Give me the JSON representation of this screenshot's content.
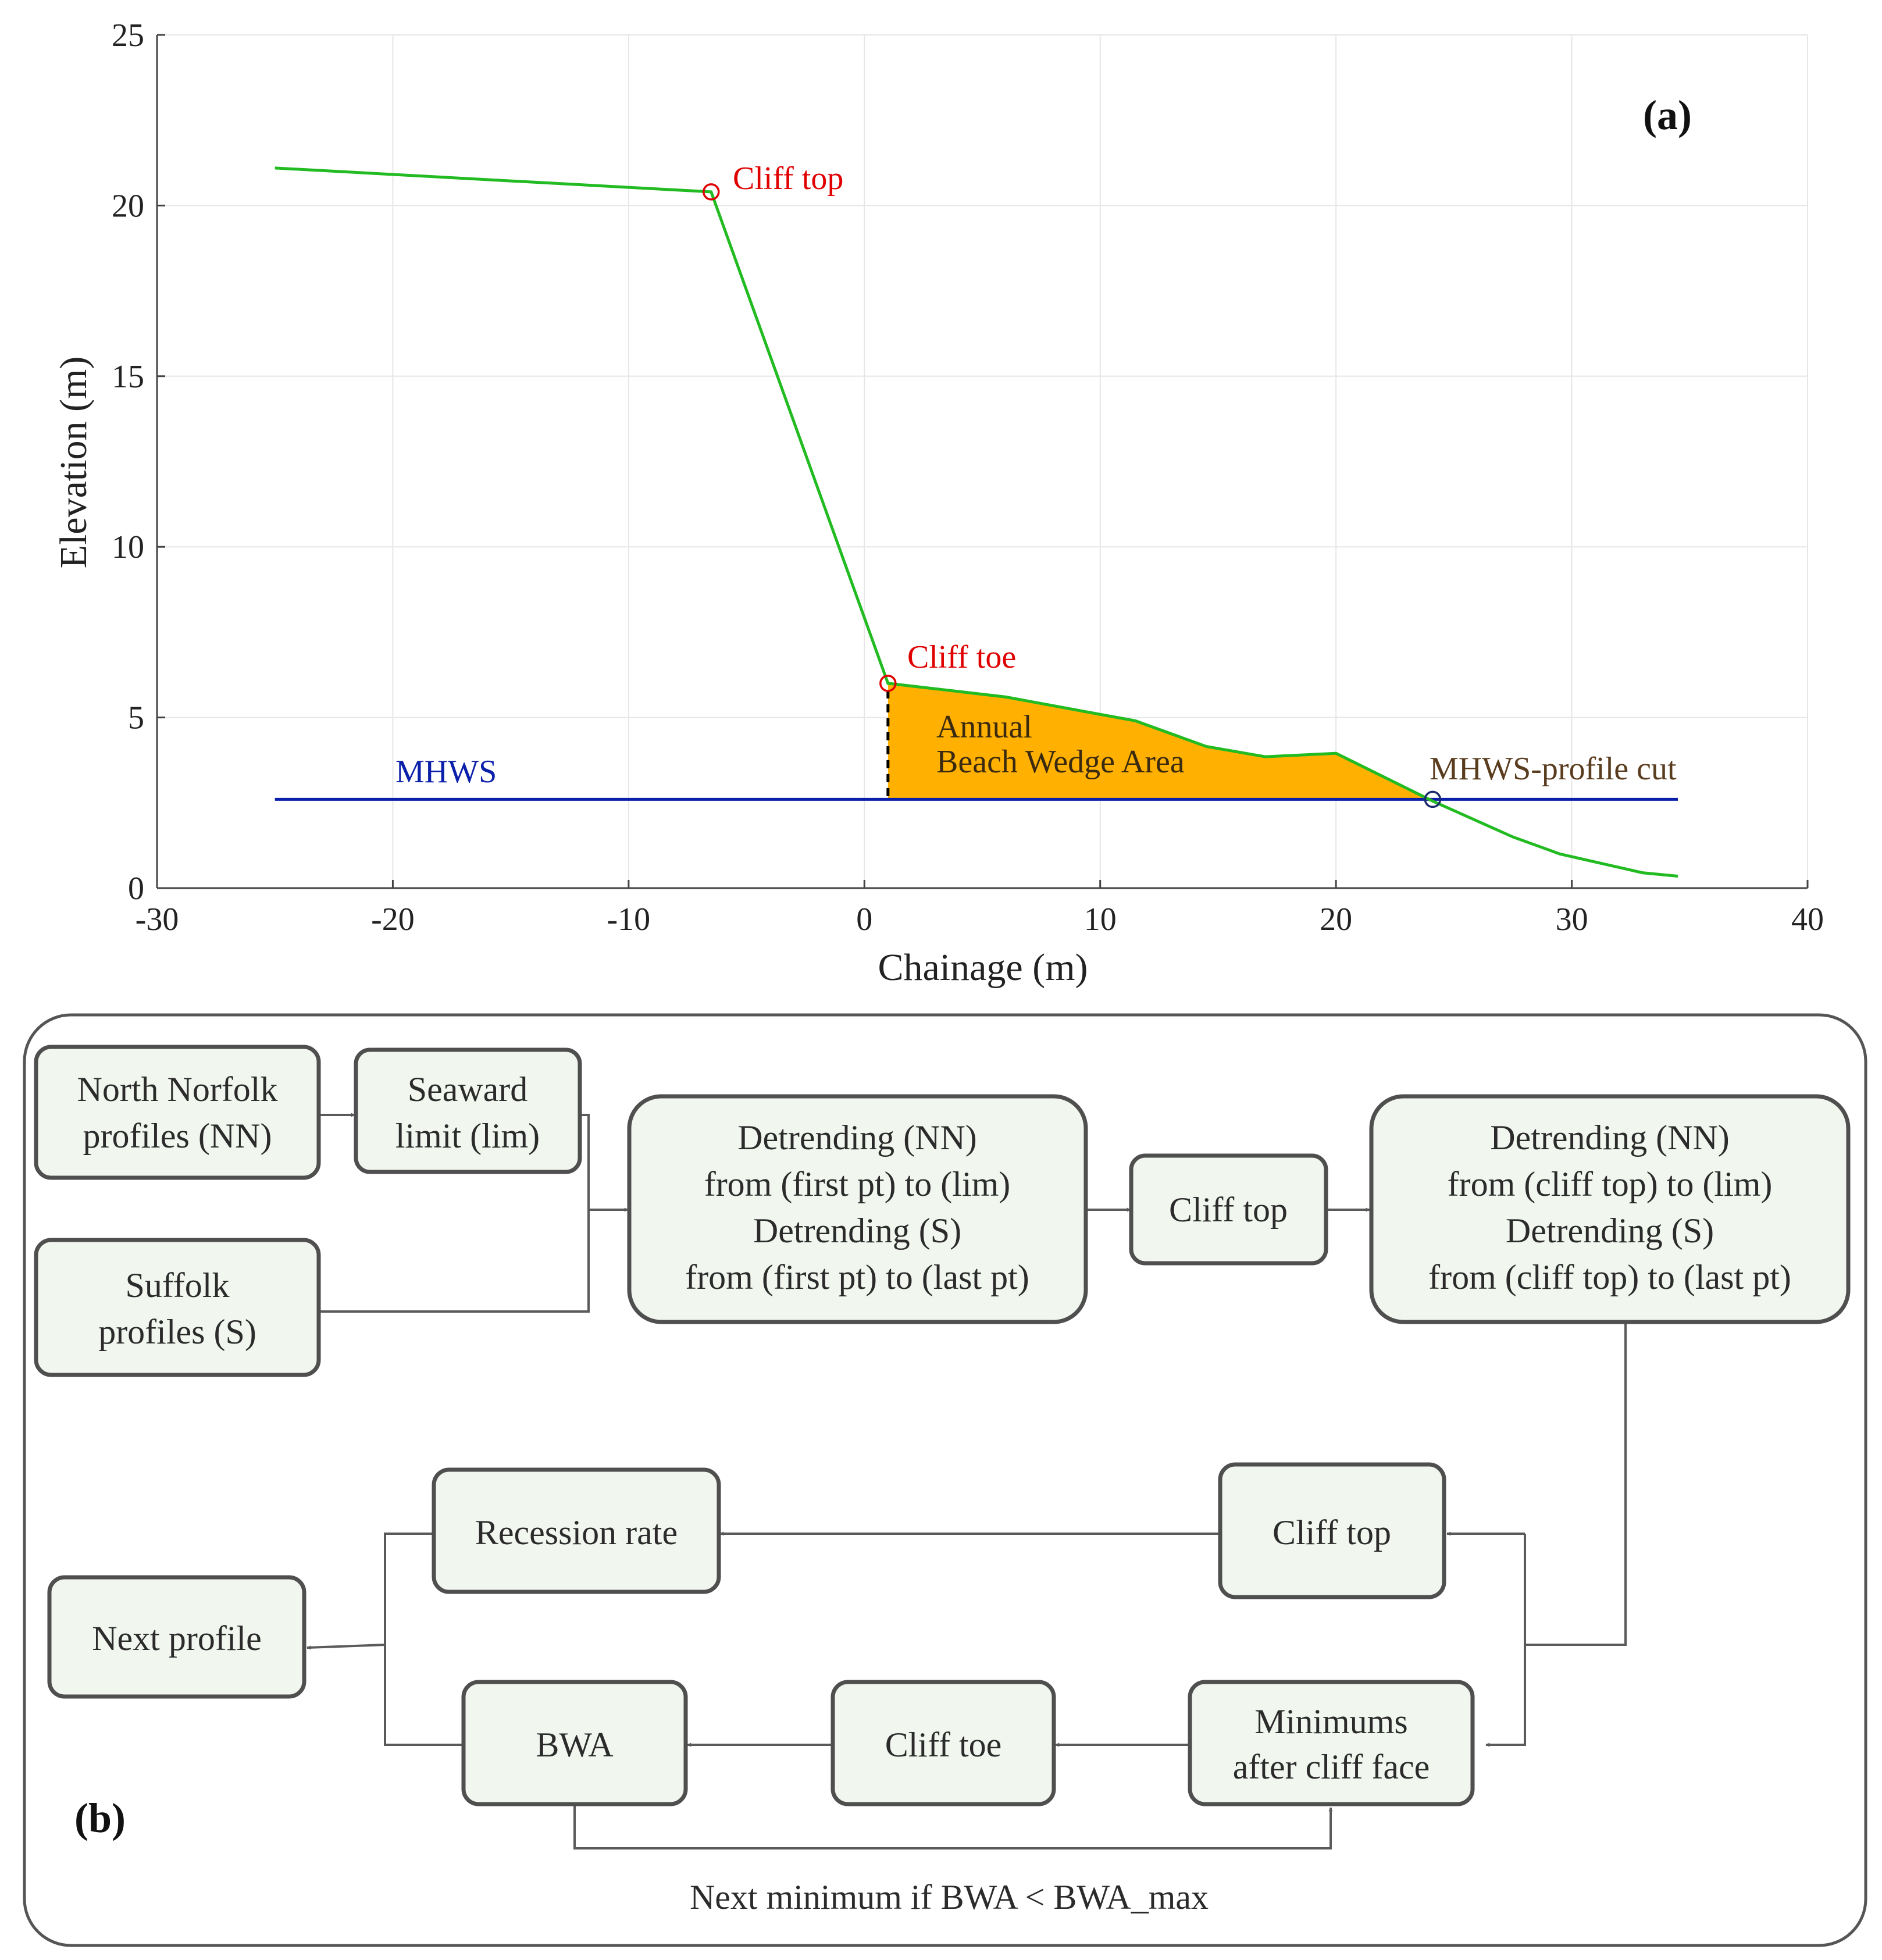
{
  "panel_a": {
    "label": "(a)",
    "annotations": {
      "cliff_top": "Cliff top",
      "cliff_toe": "Cliff toe",
      "wedge_line1": "Annual",
      "wedge_line2": "Beach Wedge Area",
      "mhws": "MHWS",
      "mhws_cut": "MHWS-profile cut"
    }
  },
  "chart_data": {
    "type": "line",
    "title": "",
    "xlabel": "Chainage (m)",
    "ylabel": "Elevation (m)",
    "xlim": [
      -30,
      40
    ],
    "ylim": [
      0,
      25
    ],
    "xticks": [
      -30,
      -20,
      -10,
      0,
      10,
      20,
      30,
      40
    ],
    "yticks": [
      0,
      5,
      10,
      15,
      20,
      25
    ],
    "grid": true,
    "series": [
      {
        "name": "Beach profile",
        "color": "#22bb22",
        "x": [
          -25,
          -6.5,
          1,
          6,
          11.5,
          14.5,
          17,
          20,
          24.1,
          27.5,
          29.5,
          33,
          34.5
        ],
        "y": [
          21.1,
          20.4,
          6,
          5.6,
          4.9,
          4.15,
          3.85,
          3.95,
          2.55,
          1.5,
          1.0,
          0.45,
          0.35
        ]
      },
      {
        "name": "MHWS",
        "color": "#0a1faa",
        "x": [
          -25,
          34.5
        ],
        "y": [
          2.6,
          2.6
        ]
      }
    ],
    "markers": [
      {
        "name": "Cliff top",
        "x": -6.5,
        "y": 20.4,
        "color": "#e00000"
      },
      {
        "name": "Cliff toe",
        "x": 1,
        "y": 6,
        "color": "#e00000"
      },
      {
        "name": "MHWS-profile cut",
        "x": 24.1,
        "y": 2.6,
        "color": "#1a2a6a"
      }
    ],
    "fill_area": {
      "name": "Annual Beach Wedge Area",
      "color": "#ffb000",
      "x_from": 1,
      "x_to": 24.1,
      "base_y": 2.6
    }
  },
  "panel_b": {
    "label": "(b)",
    "boxes": {
      "north_norfolk": [
        "North Norfolk",
        "profiles (NN)"
      ],
      "seaward_limit": [
        "Seaward",
        "limit (lim)"
      ],
      "suffolk": [
        "Suffolk",
        "profiles (S)"
      ],
      "detrending_1": [
        "Detrending (NN)",
        "from (first pt) to (lim)",
        "Detrending (S)",
        "from (first pt) to (last pt)"
      ],
      "cliff_top_1": [
        "Cliff top"
      ],
      "detrending_2": [
        "Detrending (NN)",
        "from (cliff top) to (lim)",
        "Detrending (S)",
        "from (cliff top) to (last pt)"
      ],
      "recession_rate": [
        "Recession rate"
      ],
      "cliff_top_2": [
        "Cliff top"
      ],
      "next_profile": [
        "Next profile"
      ],
      "bwa": [
        "BWA"
      ],
      "cliff_toe": [
        "Cliff toe"
      ],
      "minimums": [
        "Minimums",
        "after cliff face"
      ]
    },
    "loop_label": "Next minimum if BWA < BWA_max"
  }
}
